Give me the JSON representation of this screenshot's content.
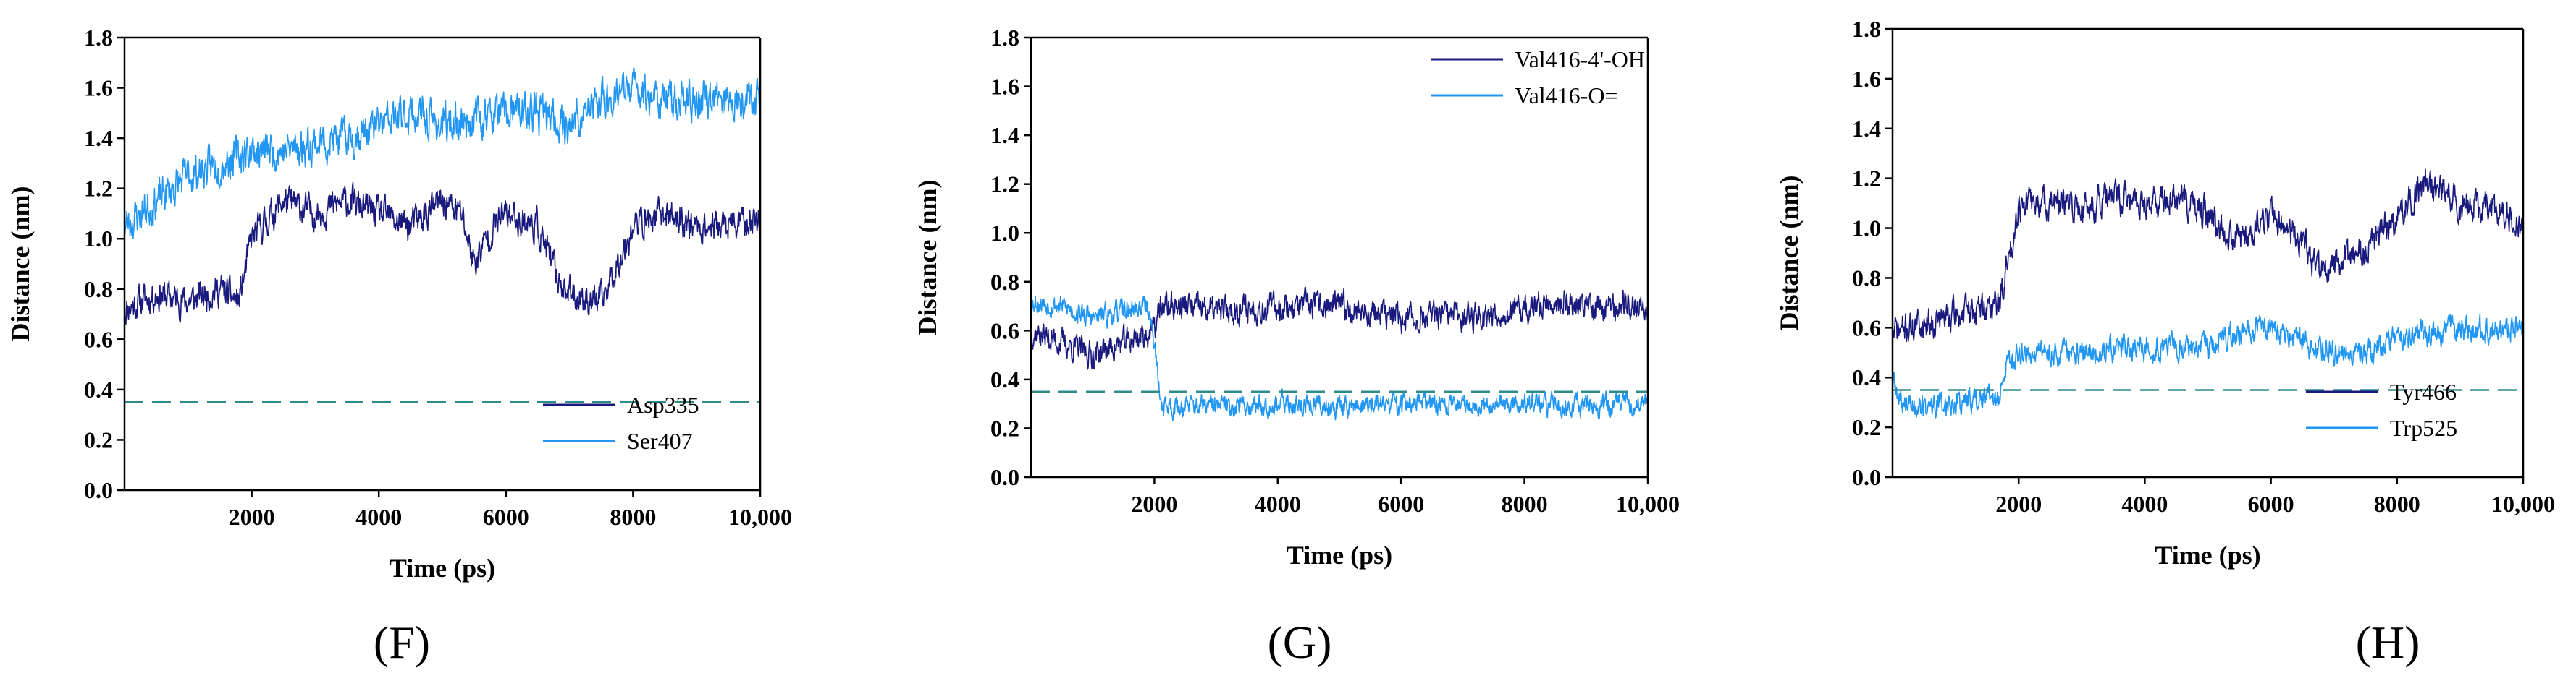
{
  "colors": {
    "dark": "#1a1a7e",
    "light": "#2196f3",
    "threshold": "#2e8b8b",
    "axis": "#000000"
  },
  "chart_data": [
    {
      "type": "line",
      "panel_label": "(F)",
      "xlabel": "Time (ps)",
      "ylabel": "Distance (nm)",
      "xlim": [
        0,
        10000
      ],
      "ylim": [
        0,
        1.8
      ],
      "xticks": [
        2000,
        4000,
        6000,
        8000,
        10000
      ],
      "xtick_labels": [
        "2000",
        "4000",
        "6000",
        "8000",
        "10,000"
      ],
      "yticks": [
        0,
        0.2,
        0.4,
        0.6,
        0.8,
        1.0,
        1.2,
        1.4,
        1.6,
        1.8
      ],
      "ytick_labels": [
        "0.0",
        "0.2",
        "0.4",
        "0.6",
        "0.8",
        "1.0",
        "1.2",
        "1.4",
        "1.6",
        "1.8"
      ],
      "threshold": 0.35,
      "legend_position": "bottom-right",
      "series": [
        {
          "name": "Asp335",
          "color_key": "dark",
          "noise": 0.05,
          "seed": 11,
          "x": [
            0,
            500,
            1000,
            1500,
            1800,
            2000,
            2500,
            3000,
            3500,
            4000,
            4500,
            5000,
            5300,
            5500,
            5800,
            6000,
            6500,
            6800,
            7000,
            7500,
            8000,
            8500,
            9000,
            9500,
            10000
          ],
          "y": [
            0.72,
            0.78,
            0.75,
            0.8,
            0.75,
            1.0,
            1.15,
            1.1,
            1.15,
            1.1,
            1.05,
            1.15,
            1.1,
            0.9,
            1.05,
            1.1,
            1.05,
            0.85,
            0.78,
            0.75,
            1.05,
            1.1,
            1.05,
            1.05,
            1.08
          ]
        },
        {
          "name": "Ser407",
          "color_key": "light",
          "noise": 0.06,
          "seed": 23,
          "x": [
            0,
            500,
            1000,
            1500,
            2000,
            2500,
            3000,
            3500,
            4000,
            4500,
            5000,
            5500,
            6000,
            6500,
            7000,
            7500,
            8000,
            8500,
            9000,
            9500,
            10000
          ],
          "y": [
            1.05,
            1.15,
            1.25,
            1.3,
            1.35,
            1.35,
            1.38,
            1.4,
            1.45,
            1.5,
            1.45,
            1.48,
            1.5,
            1.5,
            1.45,
            1.55,
            1.6,
            1.55,
            1.55,
            1.55,
            1.58
          ]
        }
      ]
    },
    {
      "type": "line",
      "panel_label": "(G)",
      "xlabel": "Time (ps)",
      "ylabel": "Distance (nm)",
      "xlim": [
        0,
        10000
      ],
      "ylim": [
        0,
        1.8
      ],
      "xticks": [
        2000,
        4000,
        6000,
        8000,
        10000
      ],
      "xtick_labels": [
        "2000",
        "4000",
        "6000",
        "8000",
        "10,000"
      ],
      "yticks": [
        0,
        0.2,
        0.4,
        0.6,
        0.8,
        1.0,
        1.2,
        1.4,
        1.6,
        1.8
      ],
      "ytick_labels": [
        "0.0",
        "0.2",
        "0.4",
        "0.6",
        "0.8",
        "1.0",
        "1.2",
        "1.4",
        "1.6",
        "1.8"
      ],
      "threshold": 0.35,
      "legend_position": "top-right",
      "series": [
        {
          "name": "Val416-4'-OH",
          "color_key": "dark",
          "noise": 0.045,
          "seed": 37,
          "x": [
            0,
            500,
            1000,
            1500,
            2000,
            2100,
            2500,
            3000,
            4000,
            5000,
            6000,
            7000,
            8000,
            8500,
            9000,
            10000
          ],
          "y": [
            0.6,
            0.55,
            0.5,
            0.55,
            0.6,
            0.7,
            0.7,
            0.68,
            0.7,
            0.7,
            0.65,
            0.66,
            0.68,
            0.72,
            0.7,
            0.7
          ]
        },
        {
          "name": "Val416-O=",
          "color_key": "light",
          "noise": 0.035,
          "seed": 53,
          "x": [
            0,
            500,
            1000,
            1500,
            1900,
            2000,
            2100,
            2300,
            3000,
            4000,
            5000,
            6000,
            7000,
            8000,
            9000,
            10000
          ],
          "y": [
            0.72,
            0.7,
            0.65,
            0.68,
            0.7,
            0.55,
            0.3,
            0.29,
            0.29,
            0.3,
            0.29,
            0.3,
            0.3,
            0.3,
            0.29,
            0.3
          ]
        }
      ]
    },
    {
      "type": "line",
      "panel_label": "(H)",
      "xlabel": "Time (ps)",
      "ylabel": "Distance (nm)",
      "xlim": [
        0,
        10000
      ],
      "ylim": [
        0,
        1.8
      ],
      "xticks": [
        2000,
        4000,
        6000,
        8000,
        10000
      ],
      "xtick_labels": [
        "2000",
        "4000",
        "6000",
        "8000",
        "10,000"
      ],
      "yticks": [
        0,
        0.2,
        0.4,
        0.6,
        0.8,
        1.0,
        1.2,
        1.4,
        1.6,
        1.8
      ],
      "ytick_labels": [
        "0.0",
        "0.2",
        "0.4",
        "0.6",
        "0.8",
        "1.0",
        "1.2",
        "1.4",
        "1.6",
        "1.8"
      ],
      "threshold": 0.35,
      "legend_position": "bottom-right",
      "series": [
        {
          "name": "Tyr466",
          "color_key": "dark",
          "noise": 0.05,
          "seed": 71,
          "x": [
            0,
            500,
            1000,
            1500,
            1700,
            1900,
            2000,
            2500,
            3000,
            3500,
            4000,
            4500,
            5000,
            5500,
            6000,
            6500,
            6800,
            7000,
            7500,
            8000,
            8500,
            9000,
            9500,
            10000
          ],
          "y": [
            0.58,
            0.62,
            0.65,
            0.68,
            0.7,
            0.95,
            1.1,
            1.1,
            1.08,
            1.12,
            1.1,
            1.12,
            1.05,
            0.95,
            1.05,
            0.95,
            0.8,
            0.85,
            0.9,
            1.05,
            1.2,
            1.1,
            1.1,
            1.0
          ]
        },
        {
          "name": "Trp525",
          "color_key": "light",
          "noise": 0.04,
          "seed": 89,
          "x": [
            0,
            100,
            500,
            1000,
            1500,
            1700,
            1800,
            2000,
            2500,
            3000,
            4000,
            5000,
            5500,
            6000,
            6500,
            7000,
            7500,
            8000,
            8500,
            9000,
            9500,
            10000
          ],
          "y": [
            0.4,
            0.3,
            0.28,
            0.3,
            0.32,
            0.3,
            0.45,
            0.5,
            0.5,
            0.5,
            0.52,
            0.52,
            0.58,
            0.6,
            0.55,
            0.5,
            0.5,
            0.55,
            0.58,
            0.6,
            0.6,
            0.6
          ]
        }
      ]
    }
  ]
}
